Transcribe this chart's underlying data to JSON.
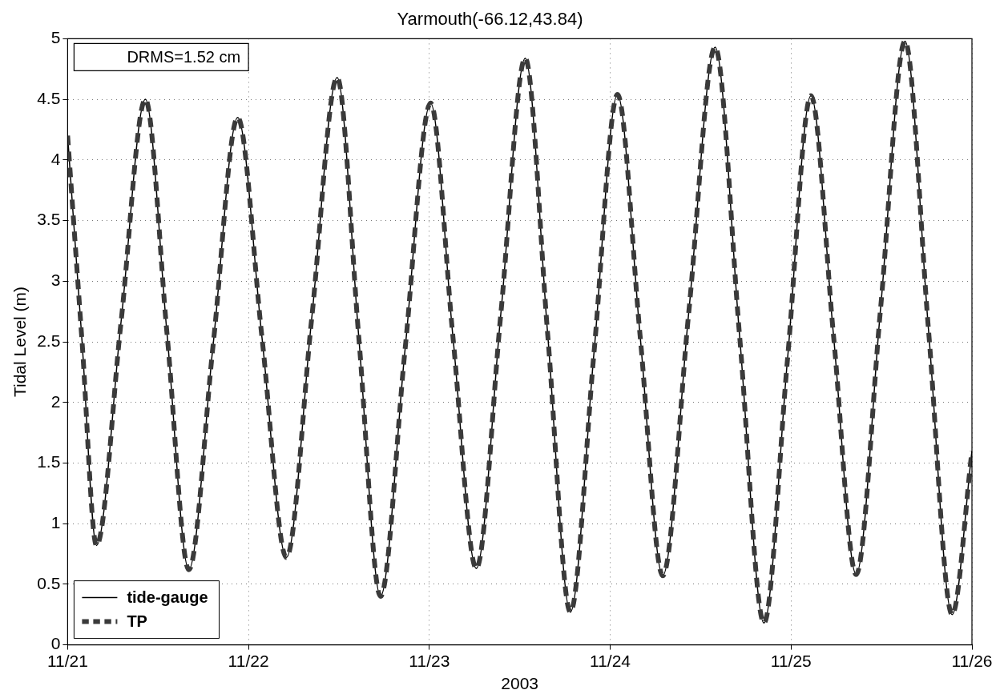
{
  "chart_data": {
    "type": "line",
    "title": "Yarmouth(-66.12,43.84)",
    "xlabel": "2003",
    "ylabel": "Tidal Level (m)",
    "annotations": [
      "DRMS=1.52 cm"
    ],
    "x": [
      "2003-11-21T00:00",
      "2003-11-21T01:55",
      "2003-11-21T03:50",
      "2003-11-21T07:05",
      "2003-11-21T10:19",
      "2003-11-21T13:12",
      "2003-11-21T16:05",
      "2003-11-21T19:19",
      "2003-11-21T22:34",
      "2003-11-22T01:48",
      "2003-11-22T05:02",
      "2003-11-22T08:24",
      "2003-11-22T11:46",
      "2003-11-22T14:38",
      "2003-11-22T17:31",
      "2003-11-22T20:46",
      "2003-11-23T00:10",
      "2003-11-23T03:07",
      "2003-11-23T06:14",
      "2003-11-23T09:29",
      "2003-11-23T12:43",
      "2003-11-23T15:43",
      "2003-11-23T18:43",
      "2003-11-23T21:50",
      "2003-11-24T00:58",
      "2003-11-24T03:58",
      "2003-11-24T06:58",
      "2003-11-24T10:26",
      "2003-11-24T13:55",
      "2003-11-24T17:10",
      "2003-11-24T20:24",
      "2003-11-24T23:31",
      "2003-11-25T02:38",
      "2003-11-25T05:38",
      "2003-11-25T08:38",
      "2003-11-25T11:53",
      "2003-11-25T15:07",
      "2003-11-25T18:14",
      "2003-11-25T21:22",
      "2003-11-26T00:00"
    ],
    "series": [
      {
        "name": "tide-gauge",
        "color": "#000000",
        "line_style": "solid",
        "values": [
          4.2,
          2.5,
          0.82,
          2.66,
          4.5,
          2.56,
          0.62,
          2.48,
          4.35,
          2.53,
          0.72,
          2.7,
          4.68,
          2.54,
          0.4,
          2.43,
          4.47,
          2.55,
          0.63,
          2.73,
          4.84,
          2.55,
          0.27,
          2.4,
          4.54,
          2.55,
          0.57,
          2.75,
          4.93,
          2.55,
          0.18,
          2.35,
          4.53,
          2.55,
          0.58,
          2.78,
          4.98,
          2.6,
          0.25,
          1.6
        ]
      },
      {
        "name": "TP",
        "color": "#3a3a3a",
        "line_style": "dashed",
        "values": [
          4.2,
          2.5,
          0.82,
          2.66,
          4.5,
          2.56,
          0.62,
          2.48,
          4.35,
          2.53,
          0.72,
          2.7,
          4.68,
          2.54,
          0.4,
          2.43,
          4.47,
          2.55,
          0.63,
          2.73,
          4.84,
          2.55,
          0.27,
          2.4,
          4.54,
          2.55,
          0.57,
          2.75,
          4.93,
          2.55,
          0.18,
          2.35,
          4.53,
          2.55,
          0.58,
          2.78,
          4.98,
          2.6,
          0.25,
          1.6
        ]
      }
    ],
    "xlim": [
      "2003-11-21",
      "2003-11-26"
    ],
    "xticks": [
      {
        "value": "2003-11-21",
        "label": "11/21"
      },
      {
        "value": "2003-11-22",
        "label": "11/22"
      },
      {
        "value": "2003-11-23",
        "label": "11/23"
      },
      {
        "value": "2003-11-24",
        "label": "11/24"
      },
      {
        "value": "2003-11-25",
        "label": "11/25"
      },
      {
        "value": "2003-11-26",
        "label": "11/26"
      }
    ],
    "ylim": [
      0,
      5
    ],
    "yticks": [
      0,
      0.5,
      1,
      1.5,
      2,
      2.5,
      3,
      3.5,
      4,
      4.5,
      5
    ],
    "grid": true,
    "legend": "bottom left",
    "marker": "none"
  }
}
